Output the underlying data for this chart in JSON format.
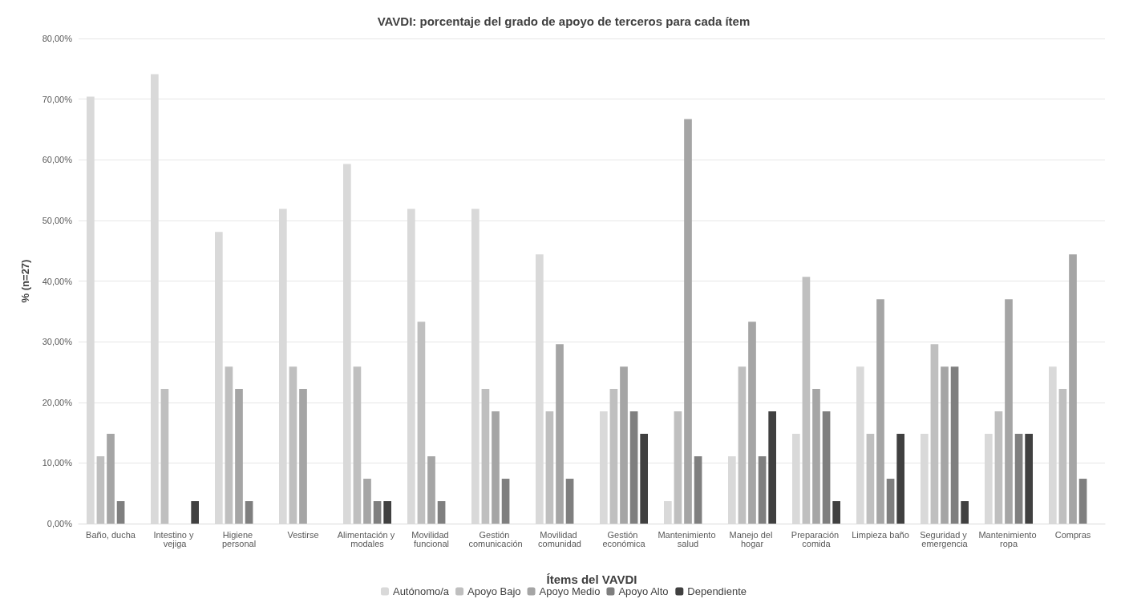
{
  "chart_data": {
    "type": "bar",
    "title": "VAVDI: porcentaje del grado de apoyo de terceros para cada ítem",
    "xlabel": "Ítems del VAVDI",
    "ylabel": "% (n=27)",
    "categories": [
      "Baño, ducha",
      "Intestino y vejiga",
      "Higiene personal",
      "Vestirse",
      "Alimentación y modales",
      "Movilidad funcional",
      "Gestión comunicación",
      "Movilidad comunidad",
      "Gestión económica",
      "Mantenimiento salud",
      "Manejo del hogar",
      "Preparación comida",
      "Limpieza baño",
      "Seguridad y emergencia",
      "Mantenimiento ropa",
      "Compras"
    ],
    "series": [
      {
        "name": "Autónomo/a",
        "color": "#d9d9d9",
        "values": [
          70.4,
          74.1,
          48.1,
          51.9,
          59.3,
          51.9,
          51.9,
          44.4,
          18.5,
          3.7,
          11.1,
          14.8,
          25.9,
          14.8,
          14.8,
          25.9
        ]
      },
      {
        "name": "Apoyo Bajo",
        "color": "#bfbfbf",
        "values": [
          11.1,
          22.2,
          25.9,
          25.9,
          25.9,
          33.3,
          22.2,
          18.5,
          22.2,
          18.5,
          25.9,
          40.7,
          14.8,
          29.6,
          18.5,
          22.2
        ]
      },
      {
        "name": "Apoyo Medio",
        "color": "#a5a5a5",
        "values": [
          14.8,
          0,
          22.2,
          22.2,
          7.4,
          11.1,
          18.5,
          29.6,
          25.9,
          66.7,
          33.3,
          22.2,
          37.0,
          25.9,
          37.0,
          44.4
        ]
      },
      {
        "name": "Apoyo Alto",
        "color": "#7f7f7f",
        "values": [
          3.7,
          0,
          3.7,
          0,
          3.7,
          3.7,
          7.4,
          7.4,
          18.5,
          11.1,
          11.1,
          18.5,
          7.4,
          25.9,
          14.8,
          7.4
        ]
      },
      {
        "name": "Dependiente",
        "color": "#404040",
        "values": [
          0,
          3.7,
          0,
          0,
          3.7,
          0,
          0,
          0,
          14.8,
          0,
          18.5,
          3.7,
          14.8,
          3.7,
          14.8,
          0
        ]
      }
    ],
    "ylim": [
      0,
      80
    ],
    "yticks": [
      {
        "value": 0,
        "label": "0,00%"
      },
      {
        "value": 10,
        "label": "10,00%"
      },
      {
        "value": 20,
        "label": "20,00%"
      },
      {
        "value": 30,
        "label": "30,00%"
      },
      {
        "value": 40,
        "label": "40,00%"
      },
      {
        "value": 50,
        "label": "50,00%"
      },
      {
        "value": 60,
        "label": "60,00%"
      },
      {
        "value": 70,
        "label": "70,00%"
      },
      {
        "value": 80,
        "label": "80,00%"
      }
    ],
    "grid": "y",
    "legend": "bottom"
  }
}
